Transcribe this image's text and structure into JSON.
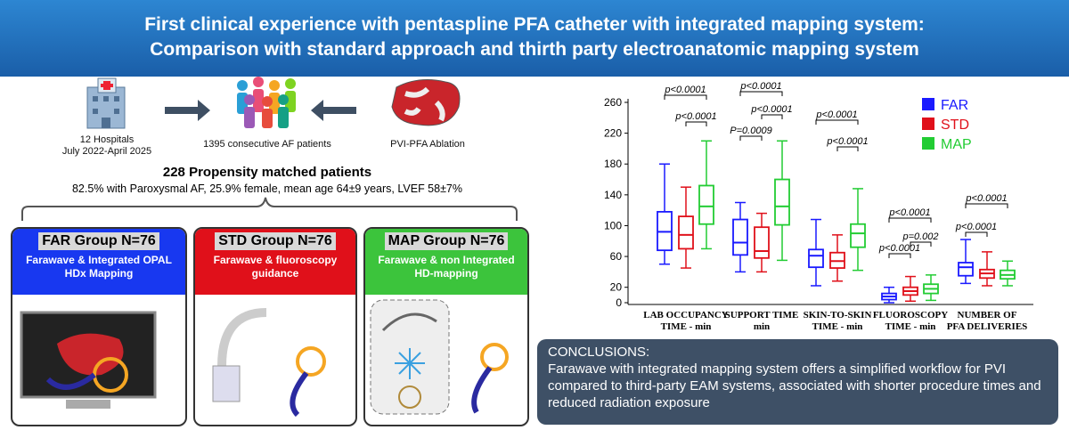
{
  "header": {
    "title_line1": "First clinical experience with pentaspline PFA catheter with integrated mapping system:",
    "title_line2": "Comparison with standard approach and thirth party electroanatomic mapping system"
  },
  "study": {
    "hospitals": "12 Hospitals",
    "period": "July 2022-April 2025",
    "patients": "1395 consecutive AF patients",
    "procedure": "PVI-PFA  Ablation",
    "matched": "228 Propensity matched patients",
    "demographics": "82.5% with Paroxysmal AF, 25.9% female, mean age 64±9 years, LVEF 58±7%"
  },
  "groups": [
    {
      "title": "FAR Group N=76",
      "description": "Farawave & Integrated OPAL HDx Mapping"
    },
    {
      "title": "STD Group N=76",
      "description": "Farawave &  fluoroscopy guidance"
    },
    {
      "title": "MAP Group N=76",
      "description": "Farawave & non Integrated HD-mapping"
    }
  ],
  "chart_data": {
    "type": "box",
    "categories": [
      "LAB OCCUPANCY\nTIME - min",
      "SUPPORT TIME\nmin",
      "SKIN-TO-SKIN\nTIME - min",
      "FLUOROSCOPY\nTIME - min",
      "NUMBER OF\nPFA DELIVERIES"
    ],
    "series": [
      {
        "name": "FAR",
        "color": "#1a1aff",
        "values": [
          [
            50,
            68,
            92,
            118,
            180
          ],
          [
            40,
            62,
            78,
            108,
            130
          ],
          [
            22,
            46,
            61,
            69,
            108
          ],
          [
            0,
            4,
            8,
            12,
            20
          ],
          [
            25,
            35,
            46,
            52,
            82
          ]
        ]
      },
      {
        "name": "STD",
        "color": "#e0101a",
        "values": [
          [
            45,
            70,
            88,
            112,
            150
          ],
          [
            40,
            58,
            67,
            98,
            116
          ],
          [
            28,
            45,
            54,
            65,
            88
          ],
          [
            2,
            10,
            15,
            20,
            34
          ],
          [
            22,
            32,
            38,
            43,
            66
          ]
        ]
      },
      {
        "name": "MAP",
        "color": "#22cc33",
        "values": [
          [
            70,
            102,
            125,
            152,
            210
          ],
          [
            55,
            101,
            125,
            160,
            210
          ],
          [
            42,
            72,
            90,
            102,
            148
          ],
          [
            3,
            12,
            18,
            24,
            36
          ],
          [
            22,
            31,
            36,
            42,
            54
          ]
        ]
      }
    ],
    "ylim": [
      0,
      260
    ],
    "yticks": [
      0,
      20,
      60,
      100,
      140,
      180,
      220,
      260
    ],
    "annotations": [
      "p<0.0001",
      "p<0.0001",
      "p<0.0001",
      "p<0.0001",
      "P=0.0009",
      "p<0.0001",
      "p<0.0001",
      "p<0.0001",
      "p=0.002",
      "p<0.0001",
      "p<0.0001",
      "p<0.0001"
    ]
  },
  "conclusions": {
    "title": "CONCLUSIONS:",
    "text": "Farawave with integrated mapping system offers a simplified workflow for PVI compared to third-party EAM systems, associated with shorter procedure times and reduced radiation exposure"
  }
}
